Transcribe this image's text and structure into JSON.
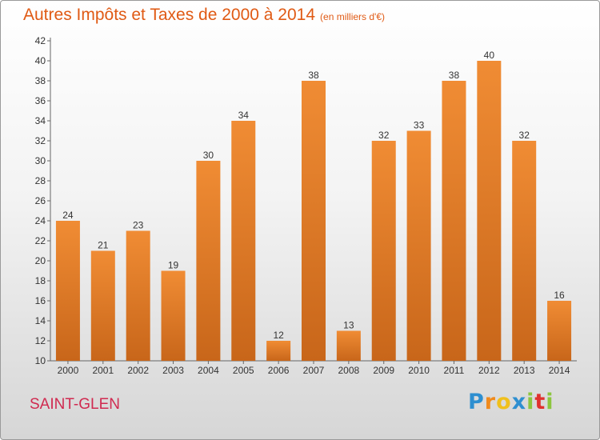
{
  "title": "Autres Impôts et Taxes de 2000 à 2014",
  "subtitle": "(en milliers d'€)",
  "commune": "SAINT-GLEN",
  "brand": {
    "letters": [
      "P",
      "r",
      "o",
      "x",
      "i",
      "t",
      "i"
    ],
    "colors": [
      "#2e8fd0",
      "#f08a1c",
      "#f0c01c",
      "#2e8fd0",
      "#8cc63e",
      "#e0322e",
      "#8cc63e"
    ]
  },
  "colors": {
    "bar": "#f08c34",
    "bar_dark": "#c8661a",
    "title": "#e05a14",
    "commune": "#d02a50"
  },
  "chart_data": {
    "type": "bar",
    "title": "Autres Impôts et Taxes de 2000 à 2014",
    "subtitle": "(en milliers d'€)",
    "categories": [
      "2000",
      "2001",
      "2002",
      "2003",
      "2004",
      "2005",
      "2006",
      "2007",
      "2008",
      "2009",
      "2010",
      "2011",
      "2012",
      "2013",
      "2014"
    ],
    "values": [
      24,
      21,
      23,
      19,
      30,
      34,
      12,
      38,
      13,
      32,
      33,
      38,
      40,
      32,
      16
    ],
    "yticks": [
      "10",
      "12",
      "14",
      "16",
      "18",
      "20",
      "22",
      "24",
      "26",
      "28",
      "30",
      "32",
      "34",
      "36",
      "38",
      "40",
      "42"
    ],
    "ylim": [
      10,
      42
    ],
    "grid": false,
    "legend": "none"
  }
}
